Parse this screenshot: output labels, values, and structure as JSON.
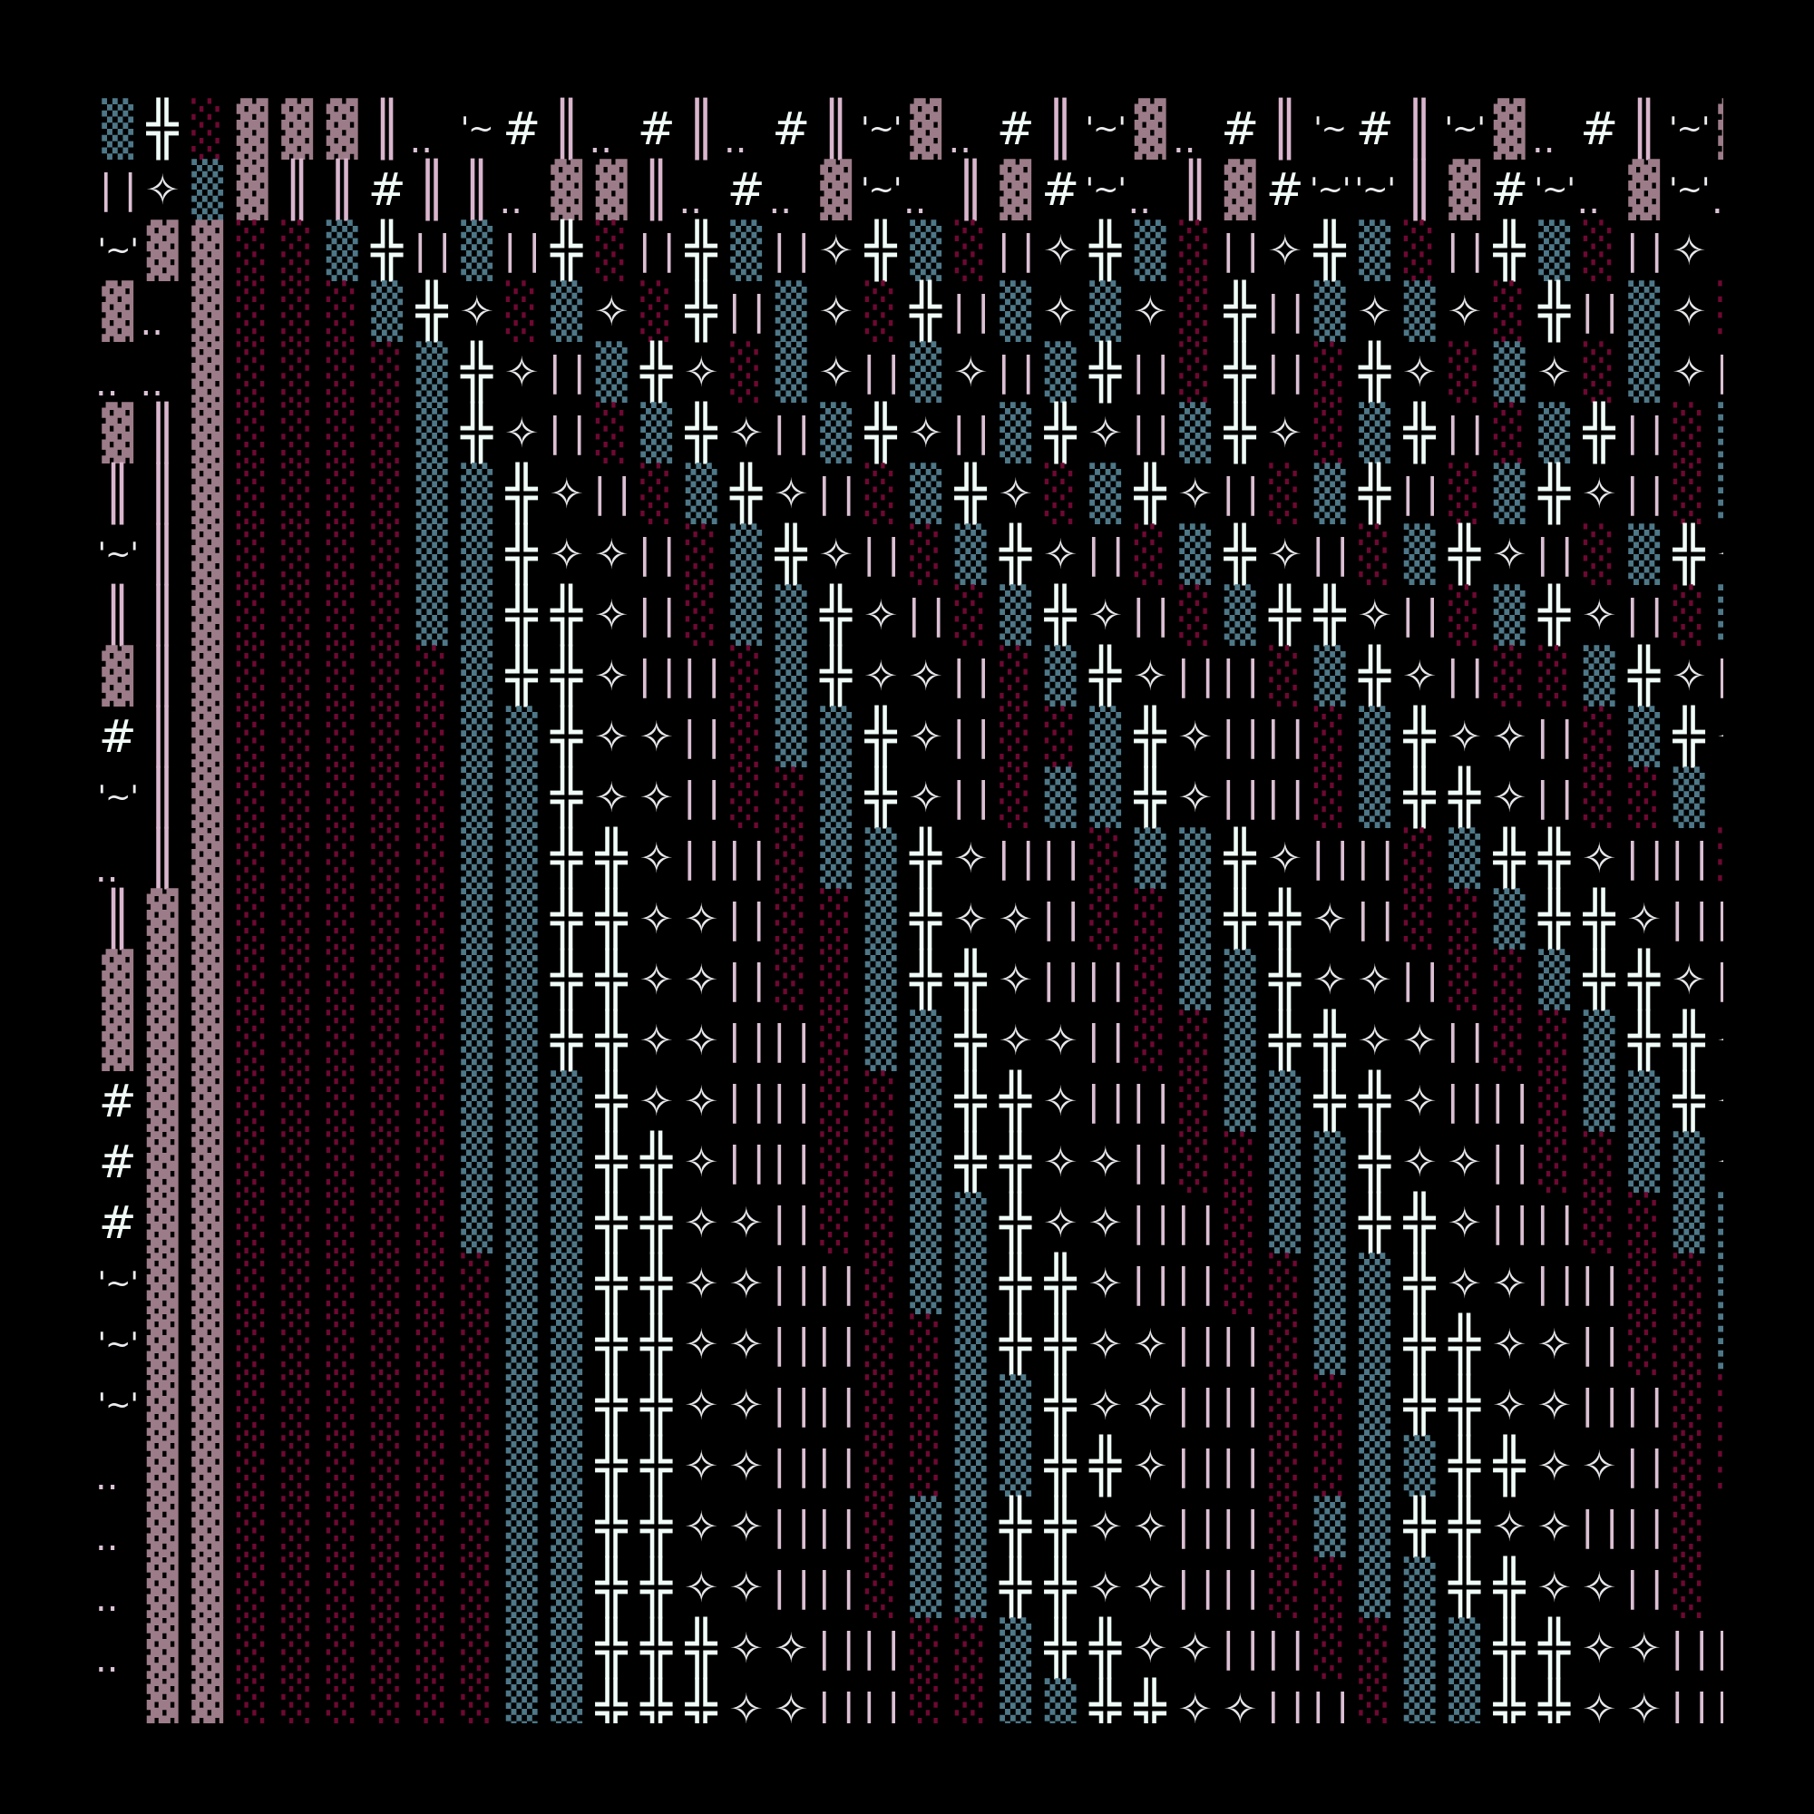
{
  "colors": {
    "background": "#000000",
    "shade_teal": "#4e7888",
    "shade_red": "#6e0832",
    "shade_pink": "#9c7c88",
    "lines_pink": "#d9b6cd",
    "glyph_white": "#effcf7"
  },
  "rows": [
    "▒╬░▓▓▓║..'~#║..#║..#║'~'▓..#║'~'▓..#║'~#║'~'▓..#║'~'▓",
    "| |✧▒▓║║#║║..▓▓║..#..▓'~'..║▓#'~'..║▓#'~''~'║▓#'~'..▓'~'..",
    "'~'▓▓░░▒╬| |▒| |╬░| |╬▒| |✧╬▒░| |✧╬▒░| |✧╬▒░| |╬▒░| |✧",
    "▓..▓░░░▒╬✧░▒✧░╬| |▒✧░╬| |▒✧▒✧░╬| |▒✧▒✧░╬| |▒✧░",
    "....▓░░░░▒╬✧| |▒╬✧░▒✧| |▒✧| |▒╬| |░╬| |░╬✧░▒✧░▒✧| |",
    "▓║▓░░░░▒╬✧| |░▒╬✧| |▒╬✧| |▒╬✧| |▒╬✧░▒╬| |░▒╬| |░▒",
    "║║▓░░░░▒▒╬✧| |░▒╬✧| |░▒╬✧░▒╬✧| |░▒╬| |░▒╬✧| |░▒",
    "'~'║▓░░░░▒▒╬✧✧| |░▒╬✧| |░▒╬✧| |░▒╬✧| |░▒╬✧| |░▒╬✧",
    "║║▓░░░░▒▒╬╬✧| |░▒▒╬✧| |░▒╬✧| |░▒╬╬✧| |░▒╬✧| |░▒",
    "▓║▓░░░░░▒╬╬✧| || |░▒╬✧✧| |░▒╬✧| || |░▒╬✧| |░░▒╬✧| |",
    "#║▓░░░░░▒▒╬✧✧| |░▒▒╬✧| |░░▒╬✧| || |░▒╬✧✧| |░▒╬✧",
    "'~'║▓░░░░░▒▒╬✧✧| |░░▒╬✧| |░▒▒╬✧| || |░▒╬╬✧| |░░▒",
    "..║▓░░░░░▒▒╬╬✧| || |░▒▒╬✧| || |░▒▒╬✧| || |░▒╬╬✧| || |░",
    "║▓▓░░░░░▒▒╬╬✧✧| |░░▒╬✧✧| |░░▒╬╬✧| |░░▒╬╬✧| || |",
    "▓▓▓░░░░░▒▒╬╬✧✧| |░░▒╬╬✧| || |░▒▒╬✧✧| |░░▒╬╬✧| |",
    "▓▓▓░░░░░▒▒╬╬✧✧| || |░▒▒╬✧✧| |░░▒╬╬✧✧| |░░▒╬╬✧",
    "#▓▓░░░░░▒▒▒╬✧✧| || |░░▒╬╬✧| || |░▒▒╬╬✧| || |░▒▒╬✧",
    "#▓▓░░░░░▒▒▒╬╬✧| || |░░▒╬╬✧✧| |░░▒▒╬✧✧| |░░▒▒✧",
    "#▓▓░░░░░▒▒▒╬╬✧✧| |░░▒▒╬✧✧| || |░▒▒╬╬✧| || |░░▒▒",
    "'~'▓▓░░░░░░▒▒╬╬✧✧| || |░▒▒╬╬✧| || |░░▒▒╬✧✧| || |░░▒",
    "'~'▓▓░░░░░░▒▒╬╬✧✧| || |░░▒╬╬✧✧| || |░▒▒╬╬✧✧| |░░▒",
    "'~'▓▓░░░░░░▒▒╬╬✧✧| || |░░▒▒╬✧✧| || |░░▒╬╬✧✧| || |░░",
    "..▓▓░░░░░░▒▒╬╬✧✧| || |░░▒▒╬╬✧| || |░░▒▒╬╬✧✧| |░░",
    "..▓▓░░░░░░▒▒╬╬✧✧| || |░▒▒╬╬✧✧| || |░▒▒╬╬✧✧| || |░",
    "..▓▓░░░░░░▒▒╬╬✧✧| || |░▒▒╬╬✧✧| || |░░▒▒╬╬✧✧| |░",
    "..▓▓░░░░░░▒▒╬╬╬✧✧| || |░░▒╬╬✧✧| || |░░▒▒╬╬✧✧| || |",
    " ▓▓░░░░░░▒▒╬╬╬✧✧| || |░░▒▒╬╬✧✧| || |░▒▒╬╬✧✧| || |"
  ]
}
